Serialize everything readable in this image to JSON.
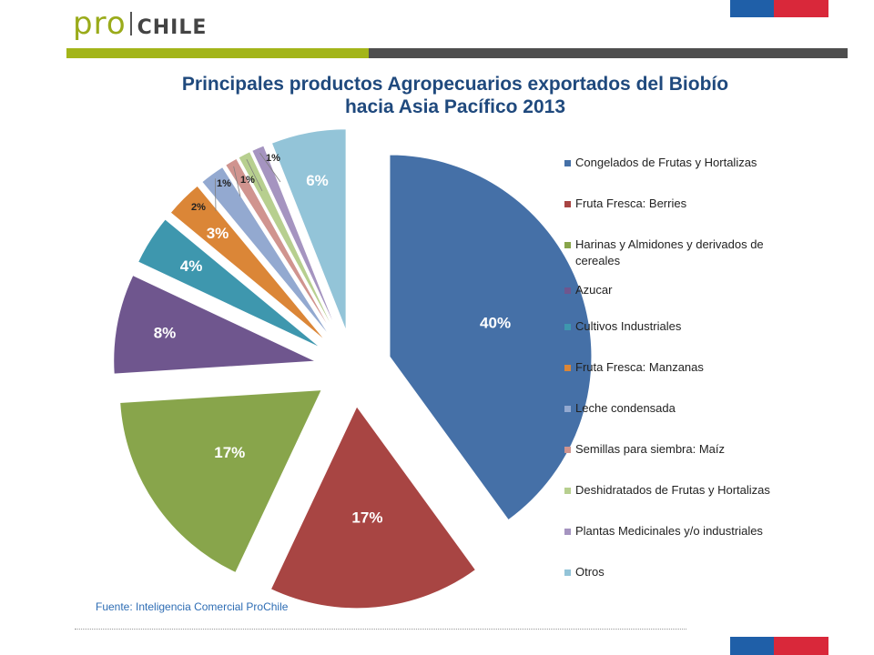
{
  "header": {
    "logo_pro": "pro",
    "logo_chile": "CHILE"
  },
  "colors": {
    "accent_green": "#a3b519",
    "accent_gray": "#4e4e4e",
    "flag_blue": "#1f5fa8",
    "flag_red": "#d9283a"
  },
  "chart_data": {
    "type": "pie",
    "title_line1": "Principales productos Agropecuarios exportados del Biobío",
    "title_line2": "hacia Asia Pacífico 2013",
    "exploded": true,
    "legend_position": "right",
    "slices": [
      {
        "label": "Congelados de Frutas y Hortalizas",
        "value": 40,
        "text": "40%",
        "color": "#4570a7"
      },
      {
        "label": "Fruta Fresca: Berries",
        "value": 17,
        "text": "17%",
        "color": "#a84543"
      },
      {
        "label": "Harinas y Almidones y derivados de cereales",
        "value": 17,
        "text": "17%",
        "color": "#88a54b"
      },
      {
        "label": "Azucar",
        "value": 8,
        "text": "8%",
        "color": "#6f568e"
      },
      {
        "label": "Cultivos Industriales",
        "value": 4,
        "text": "4%",
        "color": "#3e97ae"
      },
      {
        "label": "Fruta Fresca: Manzanas",
        "value": 3,
        "text": "3%",
        "color": "#db8637"
      },
      {
        "label": "Leche condensada",
        "value": 2,
        "text": "2%",
        "color": "#93a9d0"
      },
      {
        "label": "Semillas para siembra: Maíz",
        "value": 1,
        "text": "1%",
        "color": "#d0948f"
      },
      {
        "label": "Deshidratados  de  Frutas y Hortalizas",
        "value": 1,
        "text": "1%",
        "color": "#b7cf8f"
      },
      {
        "label": "Plantas Medicinales y/o industriales",
        "value": 1,
        "text": "1%",
        "color": "#a594c0"
      },
      {
        "label": "Otros",
        "value": 6,
        "text": "6%",
        "color": "#93c4d8"
      }
    ]
  },
  "footer": {
    "source": "Fuente: Inteligencia Comercial ProChile"
  }
}
